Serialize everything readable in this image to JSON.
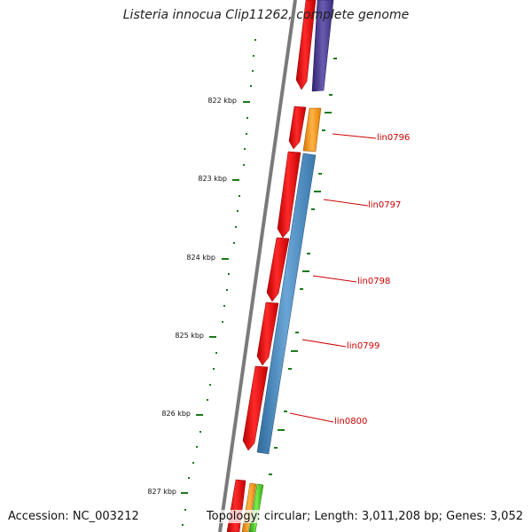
{
  "title": "Listeria innocua Clip11262, complete genome",
  "scale_labels": [
    "822 kbp",
    "823 kbp",
    "824 kbp",
    "825 kbp",
    "826 kbp",
    "827 kbp"
  ],
  "gene_labels": [
    "lin0796",
    "lin0797",
    "lin0798",
    "lin0799",
    "lin0800"
  ],
  "footer": {
    "accession": "Accession: NC_003212",
    "topology": "Topology: circular; Length: 3,011,208 bp; Genes: 3,052"
  },
  "colors": {
    "backbone": "#7a7a7a",
    "scale": "#1a7a1a",
    "label": "#cc0000",
    "cds_forward": "#ee1111",
    "blue_track": "#4a87bd",
    "orange_track": "#ff9a1a",
    "purple_track": "#4a3d8f",
    "green_track": "#44cc22"
  }
}
